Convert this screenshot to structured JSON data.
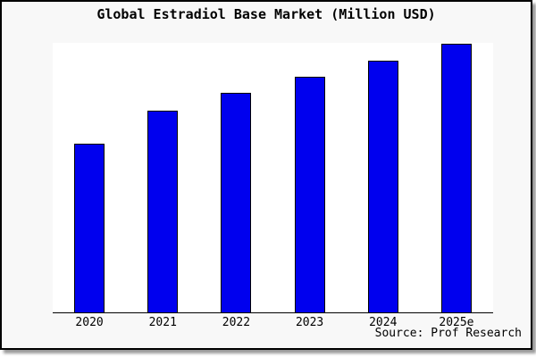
{
  "page": {
    "background": "#ffffff",
    "box_background": "#f8f8f8",
    "plot_background": "#ffffff",
    "border_color": "#000000"
  },
  "chart_data": {
    "type": "bar",
    "title": "Global Estradiol Base Market (Million USD)",
    "categories": [
      "2020",
      "2021",
      "2022",
      "2023",
      "2024",
      "2025e"
    ],
    "values": [
      62.8,
      75.1,
      81.7,
      87.7,
      93.7,
      100.0
    ],
    "values_note": "relative bar heights, 2025e = 100; chart shows no y-axis scale, gridlines or data labels",
    "xlabel": "",
    "ylabel": "",
    "grid": false,
    "legend": null,
    "bar_color": "#0000ee",
    "bar_border_color": "#000000",
    "source": "Source: Prof Research"
  }
}
